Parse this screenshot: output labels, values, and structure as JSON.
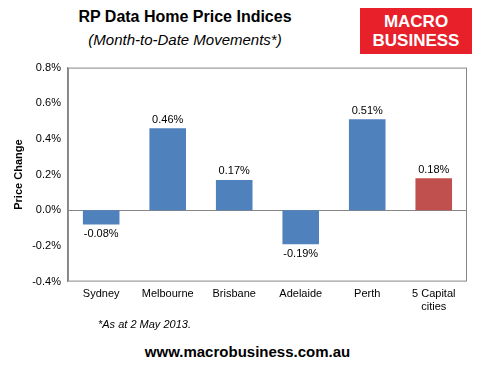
{
  "chart_data": {
    "type": "bar",
    "title": "RP Data Home Price Indices",
    "subtitle": "(Month-to-Date Movements*)",
    "y_label": "Price Change",
    "categories": [
      "Sydney",
      "Melbourne",
      "Brisbane",
      "Adelaide",
      "Perth",
      "5 Capital cities"
    ],
    "values": [
      -0.08,
      0.46,
      0.17,
      -0.19,
      0.51,
      0.18
    ],
    "value_labels": [
      "-0.08%",
      "0.46%",
      "0.17%",
      "-0.19%",
      "0.51%",
      "0.18%"
    ],
    "colors": [
      "#4f81bd",
      "#4f81bd",
      "#4f81bd",
      "#4f81bd",
      "#4f81bd",
      "#c0504d"
    ],
    "ylim": [
      -0.4,
      0.8
    ],
    "yticks": [
      {
        "value": -0.4,
        "label": "-0.4%"
      },
      {
        "value": -0.2,
        "label": "-0.2%"
      },
      {
        "value": 0,
        "label": "0.0%"
      },
      {
        "value": 0.2,
        "label": "0.2%"
      },
      {
        "value": 0.4,
        "label": "0.4%"
      },
      {
        "value": 0.6,
        "label": "0.6%"
      },
      {
        "value": 0.8,
        "label": "0.8%"
      }
    ],
    "grid": false,
    "data_labels": true,
    "annotations": [
      "*As at 2 May 2013.",
      "www.macrobusiness.com.au"
    ],
    "logo": [
      "MACRO",
      "BUSINESS"
    ]
  }
}
